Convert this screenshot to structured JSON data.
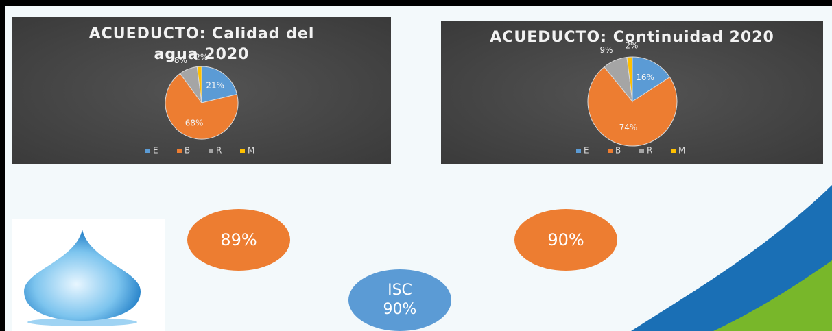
{
  "chart_data": [
    {
      "type": "pie",
      "title": "ACUEDUCTO: Calidad  del agua 2020",
      "categories": [
        "E",
        "B",
        "R",
        "M"
      ],
      "values": [
        21,
        68,
        8,
        2
      ],
      "value_labels": [
        "21%",
        "68%",
        "8%",
        "2%"
      ],
      "colors": [
        "#5b9bd5",
        "#ed7d31",
        "#a5a5a5",
        "#ffc000"
      ]
    },
    {
      "type": "pie",
      "title": "ACUEDUCTO: Continuidad 2020",
      "categories": [
        "E",
        "B",
        "R",
        "M"
      ],
      "values": [
        16,
        74,
        9,
        2
      ],
      "value_labels": [
        "16%",
        "74%",
        "9%",
        "2%"
      ],
      "colors": [
        "#5b9bd5",
        "#ed7d31",
        "#a5a5a5",
        "#ffc000"
      ]
    }
  ],
  "badges": [
    "89%",
    "90%"
  ],
  "isc": {
    "label": "ISC",
    "value": "90%"
  }
}
